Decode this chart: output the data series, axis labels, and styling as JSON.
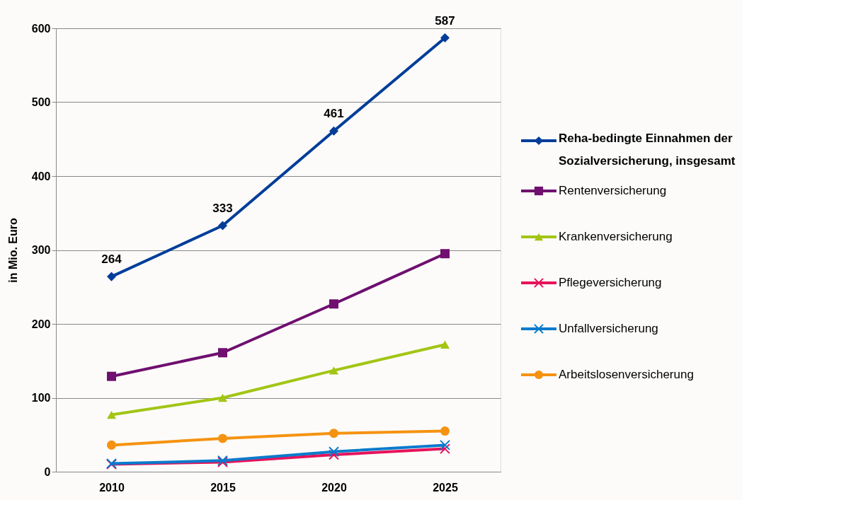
{
  "chart_data": {
    "type": "line",
    "ylabel": "in Mio. Euro",
    "categories": [
      "2010",
      "2015",
      "2020",
      "2025"
    ],
    "ylim": [
      0,
      600
    ],
    "yticks": [
      0,
      100,
      200,
      300,
      400,
      500,
      600
    ],
    "grid": "y",
    "legend": "right",
    "line_style": "solid",
    "series": [
      {
        "name": "Reha-bedingte Einnahmen der Sozialversicherung, insgesamt",
        "color": "#003d99",
        "marker": "diamond",
        "values": [
          264,
          333,
          461,
          587
        ],
        "value_labels": [
          "264",
          "333",
          "461",
          "587"
        ]
      },
      {
        "name": "Rentenversicherung",
        "color": "#6f0f6f",
        "marker": "square",
        "values": [
          129,
          161,
          227,
          295
        ]
      },
      {
        "name": "Krankenversicherung",
        "color": "#a2c515",
        "marker": "triangle",
        "values": [
          77,
          100,
          137,
          172
        ]
      },
      {
        "name": "Pflegeversicherung",
        "color": "#e6135a",
        "marker": "cross",
        "values": [
          10,
          13,
          23,
          31
        ]
      },
      {
        "name": "Unfallversicherung",
        "color": "#0a7acc",
        "marker": "cross",
        "values": [
          11,
          15,
          27,
          36
        ]
      },
      {
        "name": "Arbeitslosenversicherung",
        "color": "#f59311",
        "marker": "circle",
        "values": [
          36,
          45,
          52,
          55
        ]
      }
    ]
  }
}
